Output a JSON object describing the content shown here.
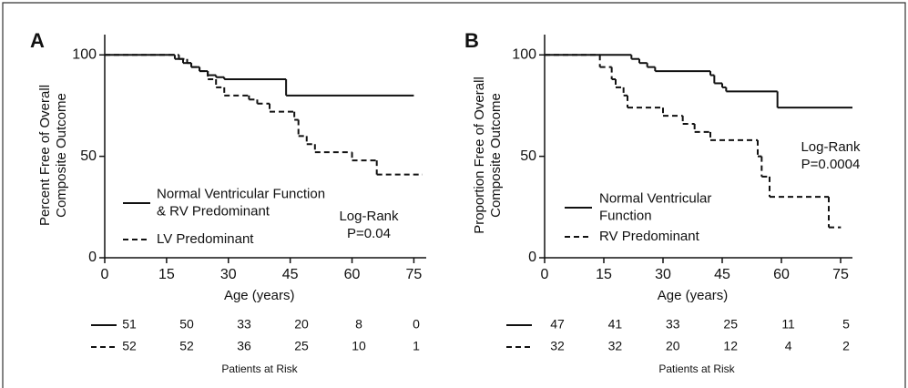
{
  "chart_data": [
    {
      "type": "step",
      "panel_label": "A",
      "y_label": [
        "Percent Free of Overall",
        "Composite Outcome"
      ],
      "x_label": "Age (years)",
      "xlim": [
        0,
        78
      ],
      "ylim": [
        0,
        110
      ],
      "xticks": [
        0,
        15,
        30,
        45,
        60,
        75
      ],
      "yticks": [
        0,
        50,
        100
      ],
      "series": [
        {
          "name": [
            "Normal Ventricular Function",
            "& RV Predominant"
          ],
          "color": "#111111",
          "dash": false,
          "x": [
            0,
            17,
            19,
            21,
            23,
            25,
            27,
            29,
            44,
            75
          ],
          "values": [
            100,
            98,
            96,
            94,
            92,
            90,
            89,
            88,
            80,
            80
          ]
        },
        {
          "name": [
            "LV Predominant"
          ],
          "color": "#111111",
          "dash": true,
          "x": [
            0,
            18,
            20,
            21,
            23,
            25,
            27,
            29,
            35,
            37,
            40,
            46,
            47,
            49,
            51,
            60,
            66,
            77
          ],
          "values": [
            100,
            98,
            96,
            94,
            92,
            88,
            84,
            80,
            78,
            76,
            72,
            68,
            60,
            56,
            52,
            48,
            41,
            41
          ]
        }
      ],
      "annotation": [
        "Log-Rank",
        "P=0.04"
      ],
      "risk_table": {
        "title": "Patients at Risk",
        "rows": [
          [
            51,
            50,
            33,
            20,
            8,
            0
          ],
          [
            52,
            52,
            36,
            25,
            10,
            1
          ]
        ]
      }
    },
    {
      "type": "step",
      "panel_label": "B",
      "y_label": [
        "Proportion Free of Overall",
        "Composite Outcome"
      ],
      "x_label": "Age (years)",
      "xlim": [
        0,
        78
      ],
      "ylim": [
        0,
        110
      ],
      "xticks": [
        0,
        15,
        30,
        45,
        60,
        75
      ],
      "yticks": [
        0,
        50,
        100
      ],
      "series": [
        {
          "name": [
            "Normal Ventricular",
            "Function"
          ],
          "color": "#111111",
          "dash": false,
          "x": [
            0,
            22,
            24,
            26,
            28,
            42,
            43,
            45,
            46,
            59,
            78
          ],
          "values": [
            100,
            98,
            96,
            94,
            92,
            90,
            86,
            84,
            82,
            74,
            74
          ]
        },
        {
          "name": [
            "RV Predominant"
          ],
          "color": "#111111",
          "dash": true,
          "x": [
            0,
            14,
            17,
            18,
            20,
            21,
            30,
            35,
            38,
            42,
            54,
            55,
            57,
            72,
            75
          ],
          "values": [
            100,
            94,
            88,
            84,
            80,
            74,
            70,
            66,
            62,
            58,
            50,
            40,
            30,
            15,
            15
          ]
        }
      ],
      "annotation": [
        "Log-Rank",
        "P=0.0004"
      ],
      "risk_table": {
        "title": "Patients at Risk",
        "rows": [
          [
            47,
            41,
            33,
            25,
            11,
            5
          ],
          [
            32,
            32,
            20,
            12,
            4,
            2
          ]
        ]
      }
    }
  ]
}
